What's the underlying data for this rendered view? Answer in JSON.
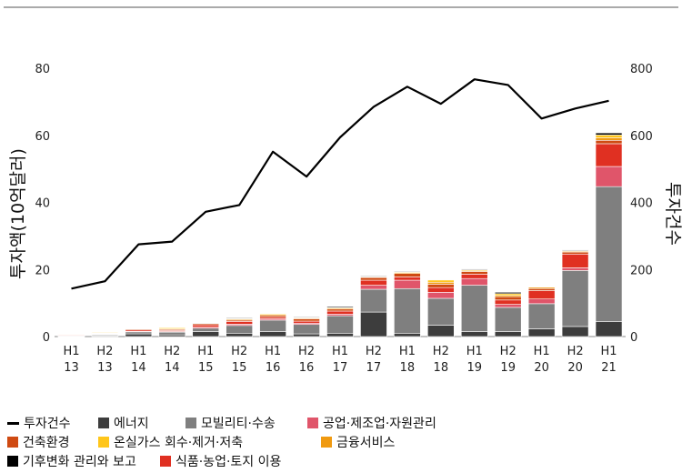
{
  "chart_data": {
    "type": "bar",
    "categories": [
      {
        "half": "H1",
        "year": "13"
      },
      {
        "half": "H2",
        "year": "13"
      },
      {
        "half": "H1",
        "year": "14"
      },
      {
        "half": "H2",
        "year": "14"
      },
      {
        "half": "H1",
        "year": "15"
      },
      {
        "half": "H2",
        "year": "15"
      },
      {
        "half": "H1",
        "year": "16"
      },
      {
        "half": "H2",
        "year": "16"
      },
      {
        "half": "H1",
        "year": "17"
      },
      {
        "half": "H2",
        "year": "17"
      },
      {
        "half": "H1",
        "year": "18"
      },
      {
        "half": "H2",
        "year": "18"
      },
      {
        "half": "H1",
        "year": "19"
      },
      {
        "half": "H2",
        "year": "19"
      },
      {
        "half": "H1",
        "year": "20"
      },
      {
        "half": "H2",
        "year": "20"
      },
      {
        "half": "H1",
        "year": "21"
      }
    ],
    "ylabel": "투자액(10억달러)",
    "ylabel_right": "투자건수",
    "ylim": [
      0,
      80
    ],
    "yticks": [
      0,
      20,
      40,
      60,
      80
    ],
    "ylim_right": [
      0,
      800
    ],
    "yticks_right": [
      0,
      200,
      400,
      600,
      800
    ],
    "series": [
      {
        "name": "에너지",
        "color": "#3d3d3d",
        "values": [
          0.1,
          0.2,
          0.8,
          0.5,
          1.5,
          1.0,
          1.5,
          0.8,
          1.0,
          7.3,
          1.0,
          3.4,
          1.5,
          1.5,
          2.3,
          3.0,
          4.5
        ]
      },
      {
        "name": "모빌리티·수송",
        "color": "#7f7f7f",
        "values": [
          0.2,
          0.3,
          0.6,
          0.8,
          1.0,
          2.3,
          3.4,
          2.8,
          5.2,
          6.8,
          13.3,
          8.0,
          13.8,
          7.2,
          7.5,
          16.7,
          40.2
        ]
      },
      {
        "name": "공업·제조업·자원관리",
        "color": "#e0556a",
        "values": [
          0.1,
          0.1,
          0.2,
          0.2,
          0.3,
          0.4,
          0.4,
          0.4,
          0.5,
          1.2,
          2.5,
          1.8,
          2.0,
          0.9,
          1.4,
          0.8,
          6.0
        ]
      },
      {
        "name": "식품·농업·토지 이용",
        "color": "#e03022",
        "values": [
          0.2,
          0.2,
          0.4,
          0.3,
          0.7,
          0.8,
          0.5,
          0.6,
          0.9,
          1.5,
          1.0,
          1.4,
          1.3,
          1.3,
          2.5,
          4.1,
          6.8
        ]
      },
      {
        "name": "건축환경",
        "color": "#cf4a12",
        "values": [
          0.1,
          0.1,
          0.3,
          0.3,
          0.4,
          0.4,
          0.5,
          0.7,
          0.6,
          0.8,
          1.0,
          1.0,
          0.8,
          1.0,
          0.6,
          0.6,
          1.0
        ]
      },
      {
        "name": "금융서비스",
        "color": "#f09a10",
        "values": [
          0.1,
          0.1,
          0.1,
          0.2,
          0.1,
          0.3,
          0.3,
          0.2,
          0.3,
          0.2,
          0.3,
          0.6,
          0.2,
          0.4,
          0.4,
          0.3,
          0.8
        ]
      },
      {
        "name": "온실가스 회수·제거·저축",
        "color": "#ffc61a",
        "values": [
          0.1,
          0.2,
          0.1,
          0.3,
          0.1,
          0.2,
          0.3,
          0.2,
          0.2,
          0.1,
          0.2,
          0.7,
          0.3,
          0.5,
          0.2,
          0.1,
          0.8
        ]
      },
      {
        "name": "기후변화 관리와 보고",
        "color": "#000000",
        "values": [
          0.0,
          0.0,
          0.0,
          0.0,
          0.1,
          0.2,
          0.1,
          0.2,
          0.3,
          0.2,
          0.2,
          0.1,
          0.2,
          0.4,
          0.1,
          0.2,
          0.6
        ]
      }
    ],
    "line": {
      "name": "투자건수",
      "axis": "right",
      "color": "#000000",
      "values": [
        143,
        165,
        275,
        283,
        372,
        392,
        551,
        477,
        594,
        685,
        745,
        694,
        767,
        750,
        650,
        680,
        703
      ]
    },
    "legend": [
      {
        "label": "투자건수",
        "kind": "line",
        "color": "#000000"
      },
      {
        "label": "에너지",
        "kind": "box",
        "color": "#3d3d3d"
      },
      {
        "label": "모빌리티·수송",
        "kind": "box",
        "color": "#7f7f7f"
      },
      {
        "label": "공업·제조업·자원관리",
        "kind": "box",
        "color": "#e0556a"
      },
      {
        "label": "건축환경",
        "kind": "box",
        "color": "#cf4a12"
      },
      {
        "label": "온실가스 회수·제거·저축",
        "kind": "box",
        "color": "#ffc61a"
      },
      {
        "label": "금융서비스",
        "kind": "box",
        "color": "#f09a10"
      },
      {
        "label": "기후변화 관리와 보고",
        "kind": "box",
        "color": "#000000"
      },
      {
        "label": "식품·농업·토지 이용",
        "kind": "box",
        "color": "#e03022"
      }
    ]
  }
}
